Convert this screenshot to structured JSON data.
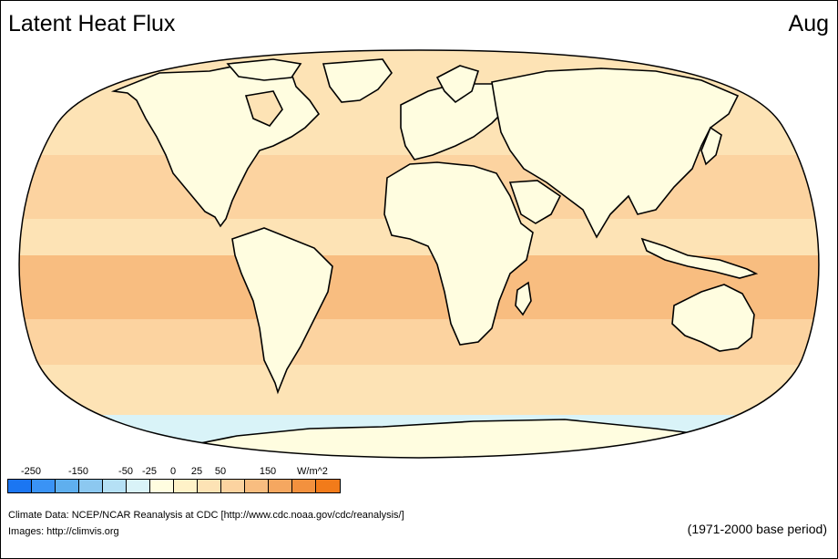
{
  "header": {
    "title": "Latent Heat Flux",
    "month": "Aug"
  },
  "legend": {
    "unit": "W/m^2",
    "labels": [
      "-250",
      "-150",
      "-50",
      "-25",
      "0",
      "25",
      "50",
      "150"
    ],
    "colors": [
      "#1b76f2",
      "#3a93f5",
      "#5fafee",
      "#8cc8f0",
      "#b5e0f5",
      "#d9f3f8",
      "#fffde0",
      "#fff2c8",
      "#fde3b5",
      "#fcd3a0",
      "#f8bd80",
      "#f5a760",
      "#f3913e",
      "#f27b1a"
    ]
  },
  "map": {
    "ocean_color": "#fcd3a0",
    "ocean_light_color": "#fde3b5",
    "ocean_dark_color": "#f8bd80",
    "land_color": "#fffde0",
    "polar_color": "#d9f3f8",
    "coast_color": "#000000"
  },
  "credits": {
    "line1": "Climate Data:  NCEP/NCAR Reanalysis at CDC [http://www.cdc.noaa.gov/cdc/reanalysis/]",
    "line2": "Images:  http://climvis.org"
  },
  "footer": {
    "base_period": "(1971-2000 base period)"
  }
}
